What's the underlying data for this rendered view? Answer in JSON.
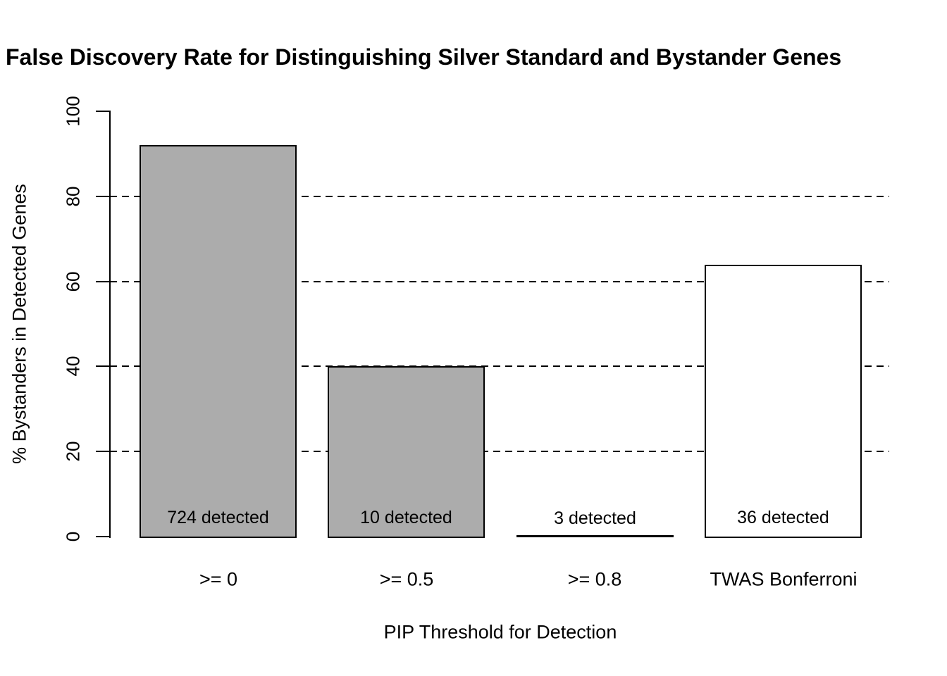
{
  "page": {
    "background_color": "#FFFFFF",
    "text_color": "#000000"
  },
  "chart_data": {
    "type": "bar",
    "title": "False Discovery Rate for Distinguishing Silver Standard and Bystander Genes",
    "xlabel": "PIP Threshold for Detection",
    "ylabel": "% Bystanders in Detected Genes",
    "categories": [
      ">= 0",
      ">= 0.5",
      ">= 0.8",
      "TWAS Bonferroni"
    ],
    "values": [
      92,
      40,
      0,
      63.9
    ],
    "bar_annotations": [
      "724 detected",
      "10 detected",
      "3 detected",
      "36 detected"
    ],
    "bar_colors": [
      "#ACACAC",
      "#ACACAC",
      "#ACACAC",
      "#FFFFFF"
    ],
    "bar_border_color": "#000000",
    "ylim": [
      0,
      100
    ],
    "yticks": [
      0,
      20,
      40,
      60,
      80,
      100
    ],
    "ytick_labels": [
      "0",
      "20",
      "40",
      "60",
      "80",
      "100"
    ],
    "gridline_values": [
      20,
      40,
      60,
      80
    ],
    "gridline_style": "dashed",
    "grid": "horizontal-dashed",
    "legend": "none"
  }
}
